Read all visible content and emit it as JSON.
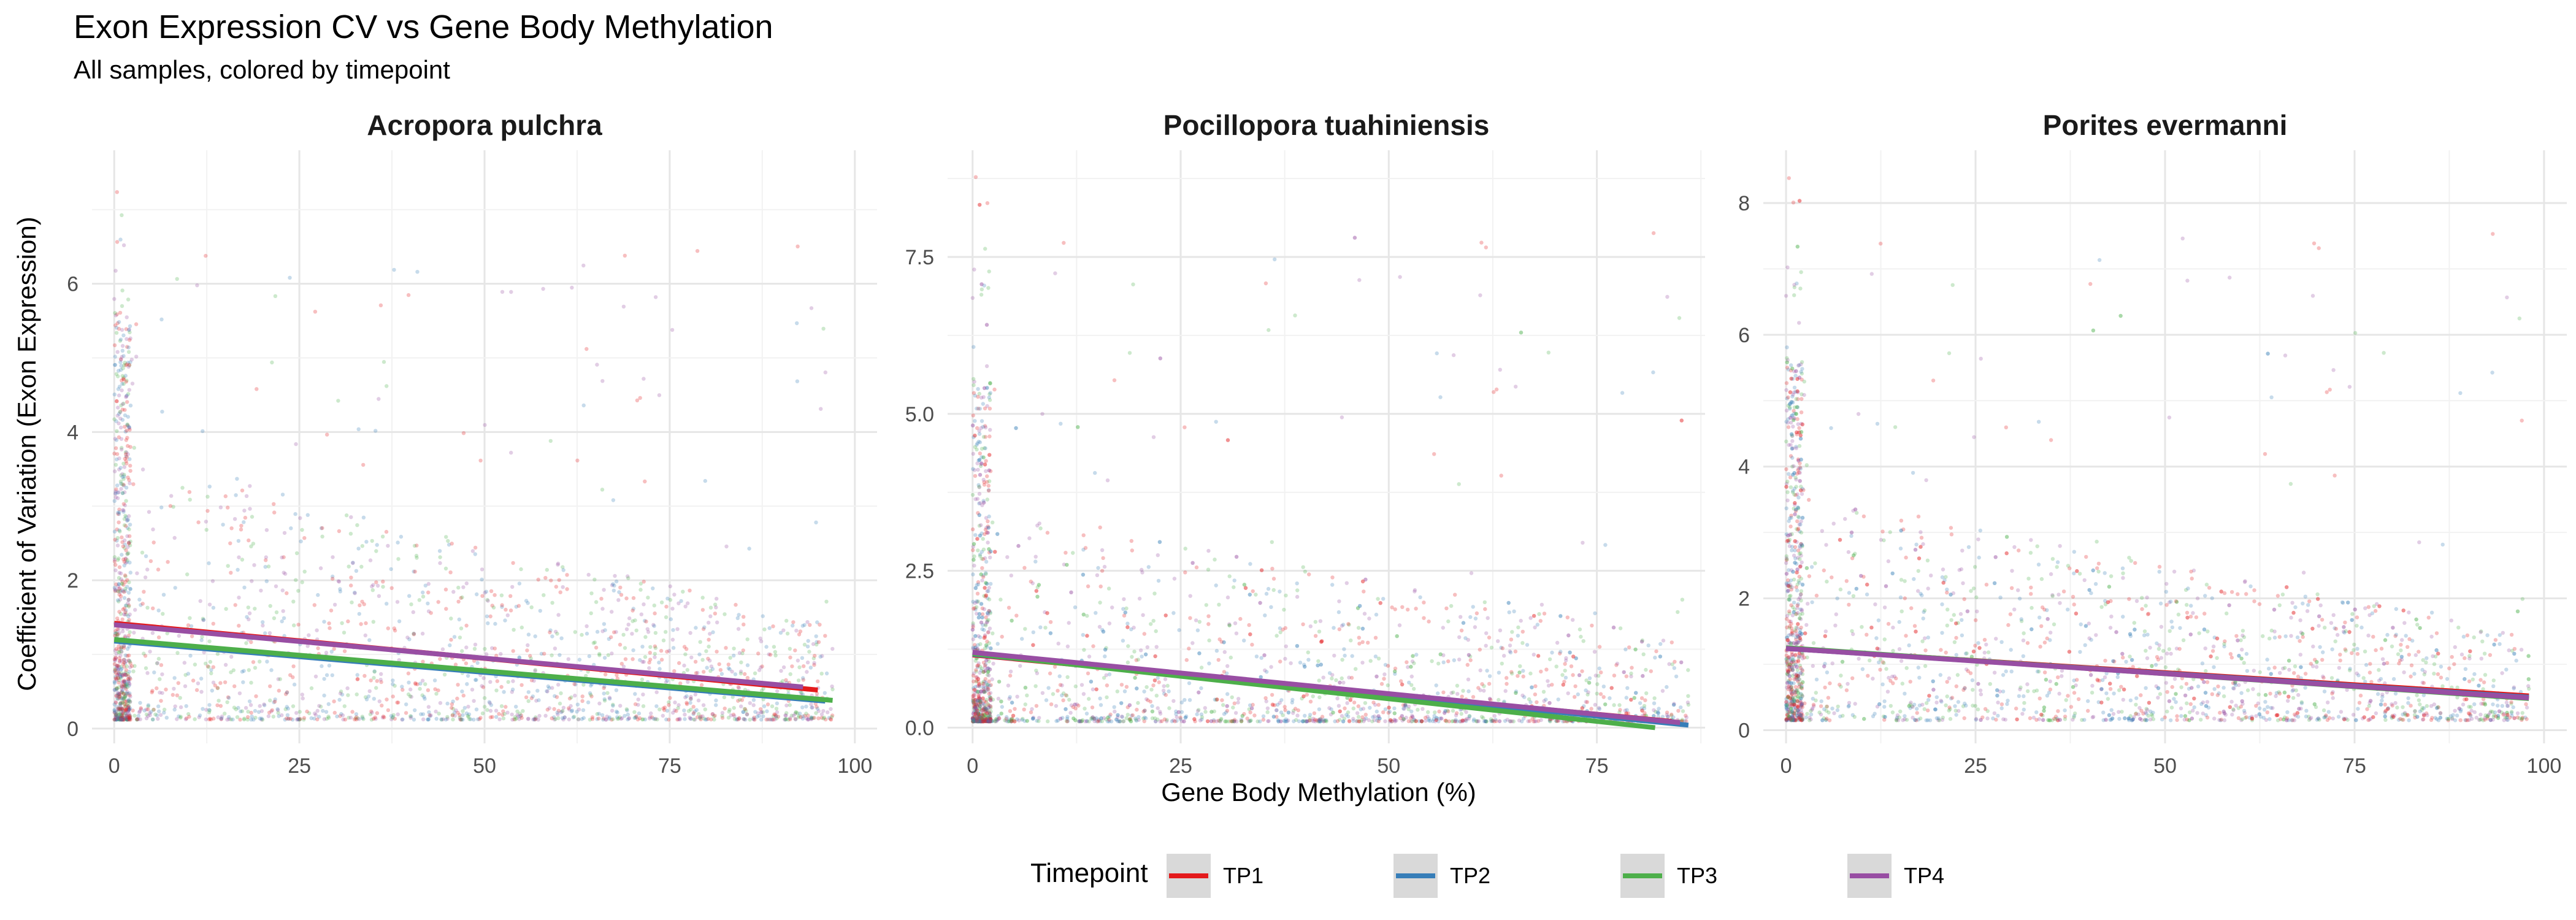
{
  "title": "Exon Expression CV vs Gene Body Methylation",
  "subtitle": "All samples, colored by timepoint",
  "xlabel": "Gene Body Methylation (%)",
  "ylabel": "Coefficient of Variation (Exon Expression)",
  "legend": {
    "title": "Timepoint",
    "position": "bottom",
    "entries": [
      {
        "label": "TP1",
        "color": "#E41A1C"
      },
      {
        "label": "TP2",
        "color": "#377EB8"
      },
      {
        "label": "TP3",
        "color": "#4DAF4A"
      },
      {
        "label": "TP4",
        "color": "#984EA3"
      }
    ]
  },
  "chart_data": [
    {
      "type": "scatter",
      "title": "Acropora pulchra",
      "xlim": [
        -3,
        103
      ],
      "ylim": [
        -0.2,
        7.8
      ],
      "xticks": [
        0,
        25,
        50,
        75,
        100
      ],
      "xtick_labels": [
        "0",
        "25",
        "50",
        "75",
        "100"
      ],
      "yticks": [
        0,
        2,
        4,
        6
      ],
      "ytick_labels": [
        "0",
        "2",
        "4",
        "6"
      ],
      "grid": true,
      "cloud": {
        "x_max": 97,
        "y_cap": 7.4,
        "y_base": 0.12,
        "decay": 2.2
      },
      "series": [
        {
          "name": "TP1",
          "trend": [
            [
              0,
              1.42
            ],
            [
              95,
              0.52
            ]
          ]
        },
        {
          "name": "TP2",
          "trend": [
            [
              0,
              1.18
            ],
            [
              96,
              0.37
            ]
          ]
        },
        {
          "name": "TP3",
          "trend": [
            [
              0,
              1.2
            ],
            [
              97,
              0.38
            ]
          ]
        },
        {
          "name": "TP4",
          "trend": [
            [
              0,
              1.4
            ],
            [
              93,
              0.56
            ]
          ]
        }
      ]
    },
    {
      "type": "scatter",
      "title": "Pocillopora tuahiniensis",
      "xlim": [
        -3,
        88
      ],
      "ylim": [
        -0.25,
        9.2
      ],
      "xticks": [
        0,
        25,
        50,
        75
      ],
      "xtick_labels": [
        "0",
        "25",
        "50",
        "75"
      ],
      "yticks": [
        0,
        2.5,
        5,
        7.5
      ],
      "ytick_labels": [
        "0.0",
        "2.5",
        "5.0",
        "7.5"
      ],
      "grid": true,
      "cloud": {
        "x_max": 86,
        "y_cap": 8.8,
        "y_base": 0.1,
        "decay": 3.0
      },
      "series": [
        {
          "name": "TP1",
          "trend": [
            [
              0,
              1.16
            ],
            [
              84,
              0.1
            ]
          ]
        },
        {
          "name": "TP2",
          "trend": [
            [
              0,
              1.17
            ],
            [
              86,
              0.04
            ]
          ]
        },
        {
          "name": "TP3",
          "trend": [
            [
              0,
              1.18
            ],
            [
              82,
              0.0
            ]
          ]
        },
        {
          "name": "TP4",
          "trend": [
            [
              0,
              1.2
            ],
            [
              85,
              0.08
            ]
          ]
        }
      ]
    },
    {
      "type": "scatter",
      "title": "Porites evermanni",
      "xlim": [
        -3,
        103
      ],
      "ylim": [
        -0.2,
        8.8
      ],
      "xticks": [
        0,
        25,
        50,
        75,
        100
      ],
      "xtick_labels": [
        "0",
        "25",
        "50",
        "75",
        "100"
      ],
      "yticks": [
        0,
        2,
        4,
        6,
        8
      ],
      "ytick_labels": [
        "0",
        "2",
        "4",
        "6",
        "8"
      ],
      "grid": true,
      "cloud": {
        "x_max": 98,
        "y_cap": 8.4,
        "y_base": 0.15,
        "decay": 1.9
      },
      "series": [
        {
          "name": "TP1",
          "trend": [
            [
              0,
              1.24
            ],
            [
              98,
              0.52
            ]
          ]
        },
        {
          "name": "TP2",
          "trend": [
            [
              0,
              1.24
            ],
            [
              98,
              0.5
            ]
          ]
        },
        {
          "name": "TP3",
          "trend": [
            [
              0,
              1.25
            ],
            [
              98,
              0.48
            ]
          ]
        },
        {
          "name": "TP4",
          "trend": [
            [
              0,
              1.24
            ],
            [
              98,
              0.49
            ]
          ]
        }
      ]
    }
  ]
}
